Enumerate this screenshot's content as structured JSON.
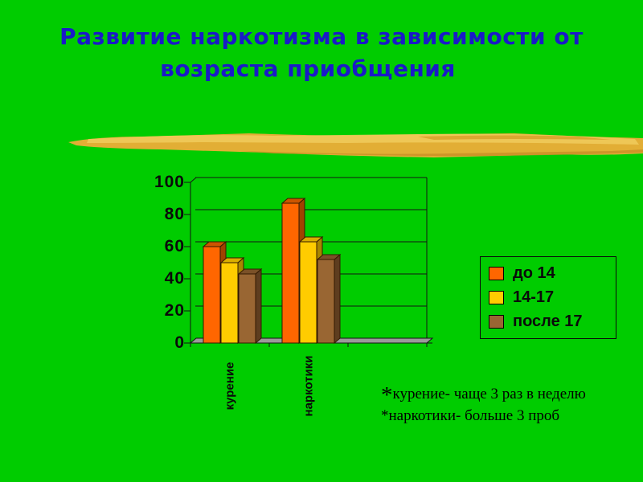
{
  "slide": {
    "background_color": "#00CC00",
    "title": {
      "line1": "Развитие наркотизма в зависимости от",
      "line2": "возраста приобщения",
      "color": "#1A1AC8"
    },
    "footnote": {
      "star": "*",
      "line1": "курение- чаще 3 раз в неделю",
      "line2": "наркотики- больше 3 проб"
    },
    "divider_color": "#E2AE35"
  },
  "chart_data": {
    "type": "bar",
    "style": "3d-clustered-column",
    "categories": [
      "курение",
      "наркотики"
    ],
    "series": [
      {
        "name": "до 14",
        "color": "#FF6600",
        "side_color": "#A04200",
        "top_color": "#CC5500",
        "values": [
          60,
          87
        ]
      },
      {
        "name": "14-17",
        "color": "#FFCC00",
        "side_color": "#A88600",
        "top_color": "#D9AE00",
        "values": [
          50,
          63
        ]
      },
      {
        "name": "после 17",
        "color": "#996633",
        "side_color": "#5E3D1F",
        "top_color": "#7B5128",
        "values": [
          43,
          52
        ]
      }
    ],
    "ylim": [
      0,
      100
    ],
    "yticks": [
      0,
      20,
      40,
      60,
      80,
      100
    ],
    "grid": true,
    "legend_position": "right",
    "floor_color": "#9A9A9A",
    "axis_color": "#141414",
    "outline_color": "#331a00"
  }
}
